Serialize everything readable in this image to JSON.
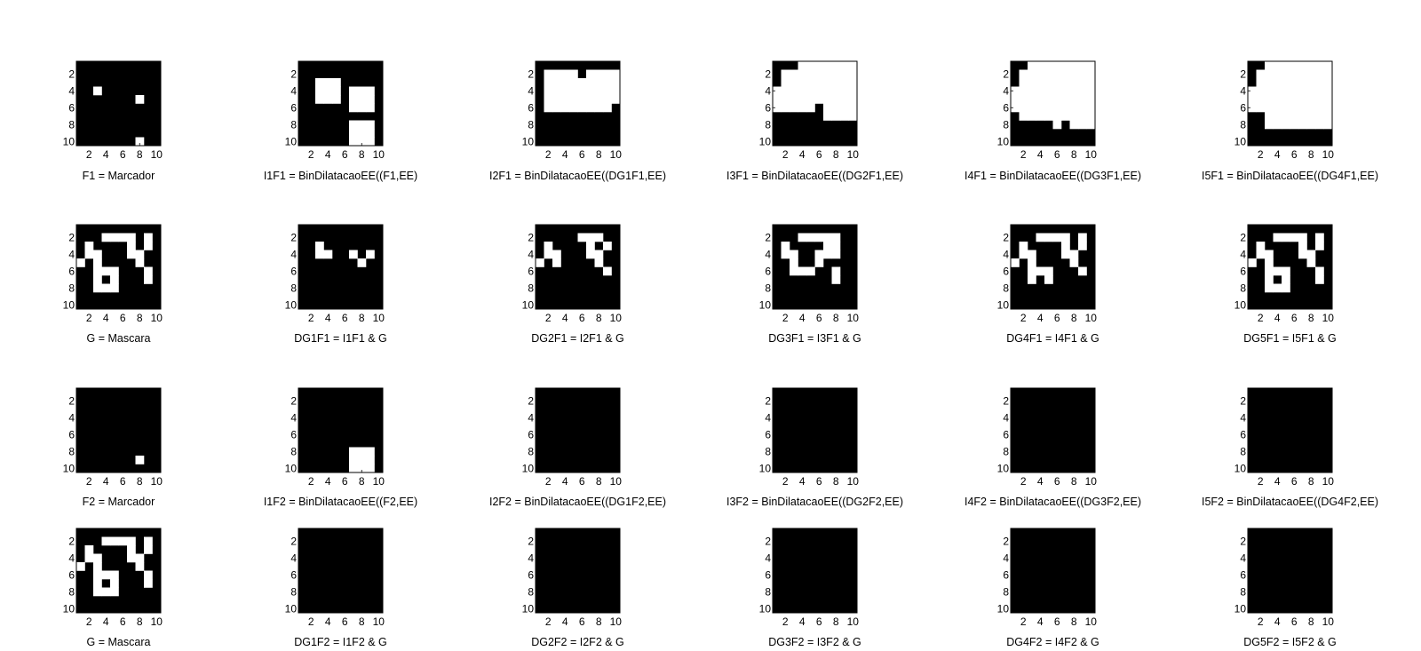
{
  "colors": {
    "on": "#ffffff",
    "off": "#000000",
    "axis": "#000000",
    "background": "#ffffff"
  },
  "chart_data": {
    "type": "heatmap",
    "tick_labels": {
      "x": [
        "2",
        "4",
        "6",
        "8",
        "10"
      ],
      "y": [
        "2",
        "4",
        "6",
        "8",
        "10"
      ]
    },
    "xlim": [
      0.5,
      10.5
    ],
    "ylim": [
      0.5,
      10.5
    ],
    "grid": false,
    "panels": [
      {
        "title": "F1 = Marcador",
        "white_rows": [
          [],
          [],
          [],
          [
            3
          ],
          [
            8
          ],
          [],
          [],
          [],
          [],
          [
            8
          ]
        ]
      },
      {
        "title": "I1F1 = BinDilatacaoEE((F1,EE)",
        "white_rows": [
          [],
          [],
          [
            3,
            4,
            5
          ],
          [
            3,
            4,
            5,
            7,
            8,
            9
          ],
          [
            3,
            4,
            5,
            7,
            8,
            9
          ],
          [
            7,
            8,
            9
          ],
          [],
          [
            7,
            8,
            9
          ],
          [
            7,
            8,
            9
          ],
          [
            7,
            8,
            9
          ]
        ]
      },
      {
        "title": "I2F1 = BinDilatacaoEE((DG1F1,EE)",
        "white_rows": [
          [],
          [
            2,
            3,
            4,
            5,
            7,
            8,
            9,
            10
          ],
          [
            2,
            3,
            4,
            5,
            6,
            7,
            8,
            9,
            10
          ],
          [
            2,
            3,
            4,
            5,
            6,
            7,
            8,
            9,
            10
          ],
          [
            2,
            3,
            4,
            5,
            6,
            7,
            8,
            9,
            10
          ],
          [
            2,
            3,
            4,
            5,
            6,
            7,
            8,
            9
          ],
          [],
          [],
          [],
          []
        ]
      },
      {
        "title": "I3F1 = BinDilatacaoEE((DG2F1,EE)",
        "white_rows": [
          [
            4,
            5,
            6,
            7,
            8,
            9,
            10
          ],
          [
            2,
            3,
            4,
            5,
            6,
            7,
            8,
            9,
            10
          ],
          [
            2,
            3,
            4,
            5,
            6,
            7,
            8,
            9,
            10
          ],
          [
            1,
            2,
            3,
            4,
            5,
            6,
            7,
            8,
            9,
            10
          ],
          [
            1,
            2,
            3,
            4,
            5,
            6,
            7,
            8,
            9,
            10
          ],
          [
            1,
            2,
            3,
            4,
            5,
            7,
            8,
            9,
            10
          ],
          [
            7,
            8,
            9,
            10
          ],
          [],
          [],
          []
        ]
      },
      {
        "title": "I4F1 = BinDilatacaoEE((DG3F1,EE)",
        "white_rows": [
          [
            3,
            4,
            5,
            6,
            7,
            8,
            9,
            10
          ],
          [
            2,
            3,
            4,
            5,
            6,
            7,
            8,
            9,
            10
          ],
          [
            2,
            3,
            4,
            5,
            6,
            7,
            8,
            9,
            10
          ],
          [
            1,
            2,
            3,
            4,
            5,
            6,
            7,
            8,
            9,
            10
          ],
          [
            1,
            2,
            3,
            4,
            5,
            6,
            7,
            8,
            9,
            10
          ],
          [
            1,
            2,
            3,
            4,
            5,
            6,
            7,
            8,
            9,
            10
          ],
          [
            2,
            3,
            4,
            5,
            6,
            7,
            8,
            9,
            10
          ],
          [
            6,
            8,
            9,
            10
          ],
          [],
          []
        ]
      },
      {
        "title": "I5F1 = BinDilatacaoEE((DG4F1,EE)",
        "white_rows": [
          [
            3,
            4,
            5,
            6,
            7,
            8,
            9,
            10
          ],
          [
            2,
            3,
            4,
            5,
            6,
            7,
            8,
            9,
            10
          ],
          [
            2,
            3,
            4,
            5,
            6,
            7,
            8,
            9,
            10
          ],
          [
            1,
            2,
            3,
            4,
            5,
            6,
            7,
            8,
            9,
            10
          ],
          [
            1,
            2,
            3,
            4,
            5,
            6,
            7,
            8,
            9,
            10
          ],
          [
            1,
            2,
            3,
            4,
            5,
            6,
            7,
            8,
            9,
            10
          ],
          [
            3,
            4,
            5,
            6,
            7,
            8,
            9,
            10
          ],
          [
            3,
            4,
            5,
            6,
            7,
            8,
            9,
            10
          ],
          [],
          []
        ]
      },
      {
        "title": "G = Mascara",
        "white_rows": [
          [],
          [
            4,
            5,
            6,
            7,
            9
          ],
          [
            2,
            7,
            9
          ],
          [
            2,
            3,
            7,
            8
          ],
          [
            1,
            3,
            8
          ],
          [
            3,
            4,
            5,
            9
          ],
          [
            3,
            5,
            9
          ],
          [
            3,
            4,
            5
          ],
          [],
          []
        ]
      },
      {
        "title": "DG1F1 = I1F1 & G",
        "white_rows": [
          [],
          [],
          [
            3
          ],
          [
            3,
            4,
            7,
            9
          ],
          [
            8
          ],
          [],
          [],
          [],
          [],
          []
        ]
      },
      {
        "title": "DG2F1 = I2F1 & G",
        "white_rows": [
          [],
          [
            6,
            7,
            8
          ],
          [
            2,
            7,
            9
          ],
          [
            2,
            3,
            7,
            8
          ],
          [
            1,
            3,
            8
          ],
          [
            9
          ],
          [],
          [],
          [],
          []
        ]
      },
      {
        "title": "DG3F1 = I3F1 & G",
        "white_rows": [
          [],
          [
            4,
            5,
            6,
            7,
            8
          ],
          [
            2,
            7,
            8
          ],
          [
            2,
            3,
            6,
            7,
            8
          ],
          [
            3,
            6
          ],
          [
            3,
            4,
            5,
            8
          ],
          [
            8
          ],
          [],
          [],
          []
        ]
      },
      {
        "title": "DG4F1 = I4F1 & G",
        "white_rows": [
          [],
          [
            4,
            5,
            6,
            7,
            9
          ],
          [
            2,
            7,
            9
          ],
          [
            2,
            3,
            7,
            8
          ],
          [
            1,
            3,
            8
          ],
          [
            3,
            4,
            5,
            9
          ],
          [
            3,
            5
          ],
          [],
          [],
          []
        ]
      },
      {
        "title": "DG5F1 = I5F1 & G",
        "white_rows": [
          [],
          [
            4,
            5,
            6,
            7,
            9
          ],
          [
            2,
            7,
            9
          ],
          [
            2,
            3,
            7,
            8
          ],
          [
            1,
            3,
            8
          ],
          [
            3,
            4,
            5,
            9
          ],
          [
            3,
            5,
            9
          ],
          [
            3,
            4,
            5
          ],
          [],
          []
        ]
      },
      {
        "title": "F2 = Marcador",
        "white_rows": [
          [],
          [],
          [],
          [],
          [],
          [],
          [],
          [],
          [
            8
          ],
          []
        ]
      },
      {
        "title": "I1F2 = BinDilatacaoEE((F2,EE)",
        "white_rows": [
          [],
          [],
          [],
          [],
          [],
          [],
          [],
          [
            7,
            8,
            9
          ],
          [
            7,
            8,
            9
          ],
          [
            7,
            8,
            9
          ]
        ]
      },
      {
        "title": "I2F2 = BinDilatacaoEE((DG1F2,EE)",
        "white_rows": [
          [],
          [],
          [],
          [],
          [],
          [],
          [],
          [],
          [],
          []
        ]
      },
      {
        "title": "I3F2 = BinDilatacaoEE((DG2F2,EE)",
        "white_rows": [
          [],
          [],
          [],
          [],
          [],
          [],
          [],
          [],
          [],
          []
        ]
      },
      {
        "title": "I4F2 = BinDilatacaoEE((DG3F2,EE)",
        "white_rows": [
          [],
          [],
          [],
          [],
          [],
          [],
          [],
          [],
          [],
          []
        ]
      },
      {
        "title": "I5F2 = BinDilatacaoEE((DG4F2,EE)",
        "white_rows": [
          [],
          [],
          [],
          [],
          [],
          [],
          [],
          [],
          [],
          []
        ]
      },
      {
        "title": "G = Mascara",
        "white_rows": [
          [],
          [
            4,
            5,
            6,
            7,
            9
          ],
          [
            2,
            7,
            9
          ],
          [
            2,
            3,
            7,
            8
          ],
          [
            1,
            3,
            8
          ],
          [
            3,
            4,
            5,
            9
          ],
          [
            3,
            5,
            9
          ],
          [
            3,
            4,
            5
          ],
          [],
          []
        ]
      },
      {
        "title": "DG1F2 = I1F2 & G",
        "white_rows": [
          [],
          [],
          [],
          [],
          [],
          [],
          [],
          [],
          [],
          []
        ]
      },
      {
        "title": "DG2F2 = I2F2 & G",
        "white_rows": [
          [],
          [],
          [],
          [],
          [],
          [],
          [],
          [],
          [],
          []
        ]
      },
      {
        "title": "DG3F2 = I3F2 & G",
        "white_rows": [
          [],
          [],
          [],
          [],
          [],
          [],
          [],
          [],
          [],
          []
        ]
      },
      {
        "title": "DG4F2 = I4F2 & G",
        "white_rows": [
          [],
          [],
          [],
          [],
          [],
          [],
          [],
          [],
          [],
          []
        ]
      },
      {
        "title": "DG5F2 = I5F2 & G",
        "white_rows": [
          [],
          [],
          [],
          [],
          [],
          [],
          [],
          [],
          [],
          []
        ]
      }
    ]
  }
}
